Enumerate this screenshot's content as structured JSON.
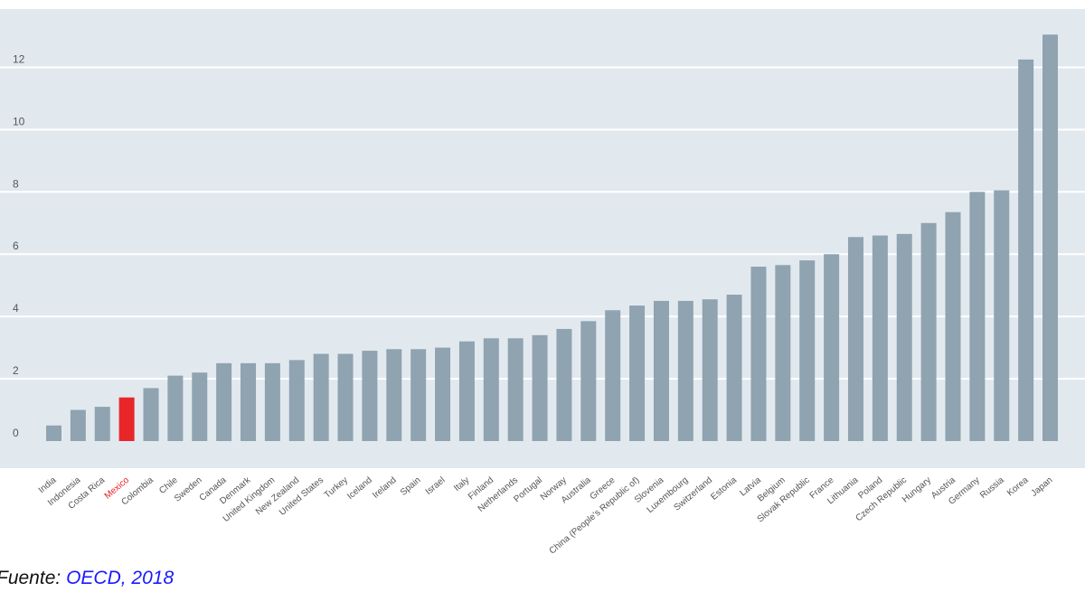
{
  "chart_data": {
    "type": "bar",
    "categories": [
      "India",
      "Indonesia",
      "Costa Rica",
      "Mexico",
      "Colombia",
      "Chile",
      "Sweden",
      "Canada",
      "Denmark",
      "United Kingdom",
      "New Zealand",
      "United States",
      "Turkey",
      "Iceland",
      "Ireland",
      "Spain",
      "Israel",
      "Italy",
      "Finland",
      "Netherlands",
      "Portugal",
      "Norway",
      "Australia",
      "Greece",
      "China (People's Republic of)",
      "Slovenia",
      "Luxembourg",
      "Switzerland",
      "Estonia",
      "Latvia",
      "Belgium",
      "Slovak Republic",
      "France",
      "Lithuania",
      "Poland",
      "Czech Republic",
      "Hungary",
      "Austria",
      "Germany",
      "Russia",
      "Korea",
      "Japan"
    ],
    "values": [
      0.5,
      1.0,
      1.1,
      1.4,
      1.7,
      2.1,
      2.2,
      2.5,
      2.5,
      2.5,
      2.6,
      2.8,
      2.8,
      2.9,
      2.95,
      2.95,
      3.0,
      3.2,
      3.3,
      3.3,
      3.4,
      3.6,
      3.85,
      4.2,
      4.35,
      4.5,
      4.5,
      4.55,
      4.7,
      5.6,
      5.65,
      5.8,
      6.0,
      6.55,
      6.6,
      6.65,
      7.0,
      7.35,
      8.0,
      8.05,
      12.25,
      13.05
    ],
    "highlight": "Mexico",
    "ylim": [
      -0.3,
      13.7
    ],
    "yticks": [
      0,
      2,
      4,
      6,
      8,
      10,
      12
    ],
    "colors": {
      "bar": "#8fa3b1",
      "highlight_bar": "#e8262a",
      "highlight_label": "#e8262a",
      "plot_bg": "#e1e9ef",
      "grid": "#ffffff",
      "label": "#555555"
    },
    "grid": true
  },
  "footer": {
    "source_prefix": "Fuente: ",
    "source_link": "OECD, 2018"
  }
}
